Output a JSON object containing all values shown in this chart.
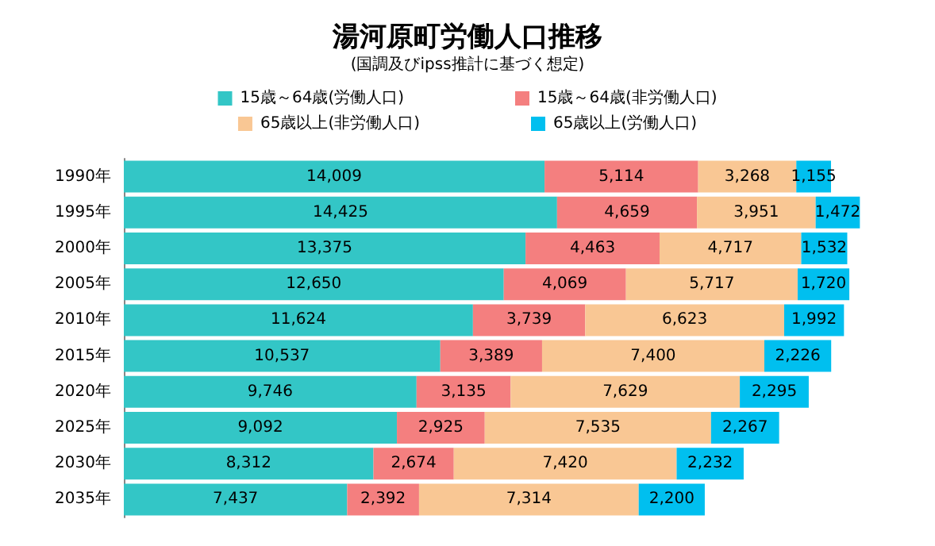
{
  "chart_data": {
    "type": "bar",
    "orientation": "horizontal",
    "stacked": true,
    "title": "湯河原町労働人口推移",
    "subtitle": "(国調及びipss推計に基づく想定)",
    "legend": "top",
    "categories": [
      "1990年",
      "1995年",
      "2000年",
      "2005年",
      "2010年",
      "2015年",
      "2020年",
      "2025年",
      "2030年",
      "2035年"
    ],
    "series": [
      {
        "name": "15歳～64歳(労働人口)",
        "color": "#33c6c6",
        "values": [
          14009,
          14425,
          13375,
          12650,
          11624,
          10537,
          9746,
          9092,
          8312,
          7437
        ],
        "value_labels": [
          "14,009",
          "14,425",
          "13,375",
          "12,650",
          "11,624",
          "10,537",
          "9,746",
          "9,092",
          "8,312",
          "7,437"
        ]
      },
      {
        "name": "15歳～64歳(非労働人口)",
        "color": "#f47f7f",
        "values": [
          5114,
          4659,
          4463,
          4069,
          3739,
          3389,
          3135,
          2925,
          2674,
          2392
        ],
        "value_labels": [
          "5,114",
          "4,659",
          "4,463",
          "4,069",
          "3,739",
          "3,389",
          "3,135",
          "2,925",
          "2,674",
          "2,392"
        ]
      },
      {
        "name": "65歳以上(非労働人口)",
        "color": "#f9c794",
        "values": [
          3268,
          3951,
          4717,
          5717,
          6623,
          7400,
          7629,
          7535,
          7420,
          7314
        ],
        "value_labels": [
          "3,268",
          "3,951",
          "4,717",
          "5,717",
          "6,623",
          "7,400",
          "7,629",
          "7,535",
          "7,420",
          "7,314"
        ]
      },
      {
        "name": "65歳以上(労働人口)",
        "color": "#00bfef",
        "values": [
          1155,
          1472,
          1532,
          1720,
          1992,
          2226,
          2295,
          2267,
          2232,
          2200
        ],
        "value_labels": [
          "1,155",
          "1,472",
          "1,532",
          "1,720",
          "1,992",
          "2,226",
          "2,295",
          "2,267",
          "2,232",
          "2,200"
        ]
      }
    ]
  }
}
